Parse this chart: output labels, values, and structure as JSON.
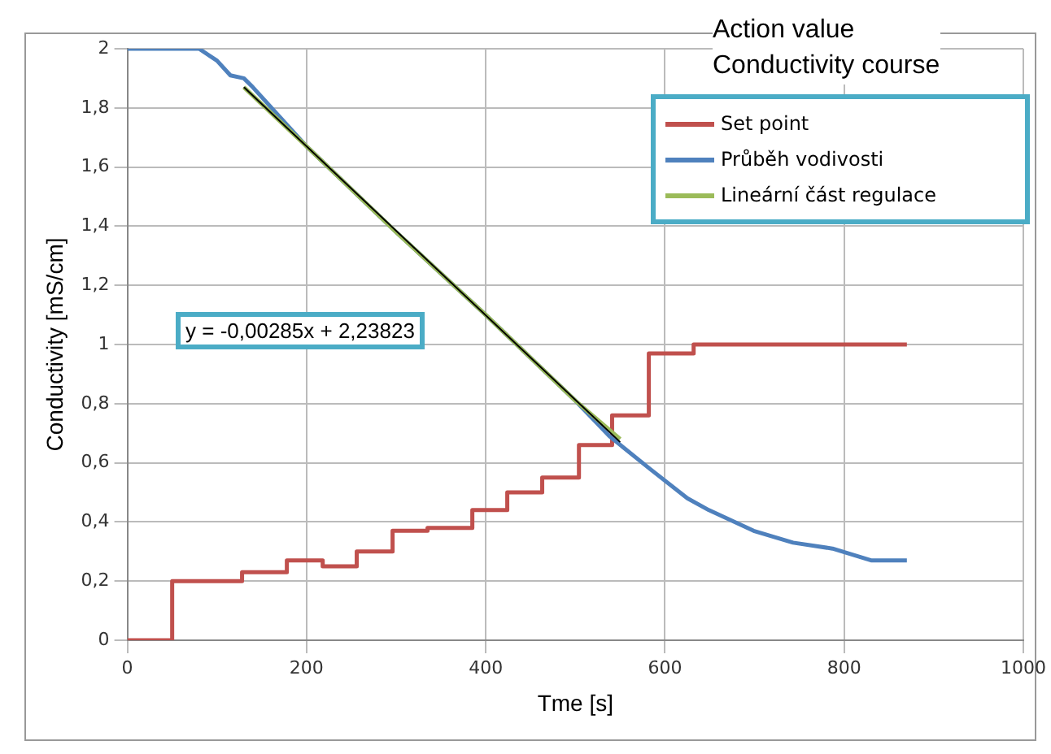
{
  "chart_data": {
    "type": "line",
    "xlabel": "Tme [s]",
    "ylabel": "Conductivity [mS/cm]",
    "xlim": [
      0,
      1000
    ],
    "xticks": [
      0,
      200,
      400,
      600,
      800,
      1000
    ],
    "ylim": [
      0,
      2
    ],
    "yticks": [
      {
        "value": 0,
        "label": "0"
      },
      {
        "value": 0.2,
        "label": "0,2"
      },
      {
        "value": 0.4,
        "label": "0,4"
      },
      {
        "value": 0.6,
        "label": "0,6"
      },
      {
        "value": 0.8,
        "label": "0,8"
      },
      {
        "value": 1,
        "label": "1"
      },
      {
        "value": 1.2,
        "label": "1,2"
      },
      {
        "value": 1.4,
        "label": "1,4"
      },
      {
        "value": 1.6,
        "label": "1,6"
      },
      {
        "value": 1.8,
        "label": "1,8"
      },
      {
        "value": 2,
        "label": "2"
      }
    ],
    "grid": true,
    "legend": "top right",
    "marker": "none",
    "line_style": "solid",
    "series": [
      {
        "name": "Set point",
        "type": "step",
        "color": "#c0504d",
        "x": [
          0,
          50,
          128,
          178,
          218,
          256,
          296,
          335,
          385,
          424,
          463,
          504,
          541,
          582,
          632,
          870
        ],
        "values": [
          0,
          0.2,
          0.23,
          0.27,
          0.25,
          0.3,
          0.37,
          0.38,
          0.44,
          0.5,
          0.55,
          0.66,
          0.76,
          0.97,
          1,
          1
        ]
      },
      {
        "name": "Průběh vodivosti",
        "color": "#4f81bd",
        "x": [
          0,
          80,
          100,
          115,
          130,
          140,
          200,
          300,
          400,
          500,
          538,
          583,
          625,
          649,
          699,
          743,
          787,
          830,
          870
        ],
        "values": [
          2,
          2,
          1.96,
          1.91,
          1.9,
          1.87,
          1.67,
          1.38,
          1.1,
          0.81,
          0.69,
          0.58,
          0.48,
          0.44,
          0.37,
          0.33,
          0.31,
          0.27,
          0.27
        ]
      },
      {
        "name": "Lineární část regulace",
        "color": "#9bbb59",
        "x": [
          130,
          200,
          300,
          400,
          500,
          550
        ],
        "values": [
          1.87,
          1.67,
          1.38,
          1.1,
          0.81,
          0.68
        ]
      },
      {
        "color": "#000000",
        "x": [
          130,
          550
        ],
        "values": [
          1.87,
          0.67
        ]
      }
    ],
    "annotations": [
      "Action value",
      "Conductivity course",
      "y = -0,00285x + 2,23823"
    ]
  }
}
